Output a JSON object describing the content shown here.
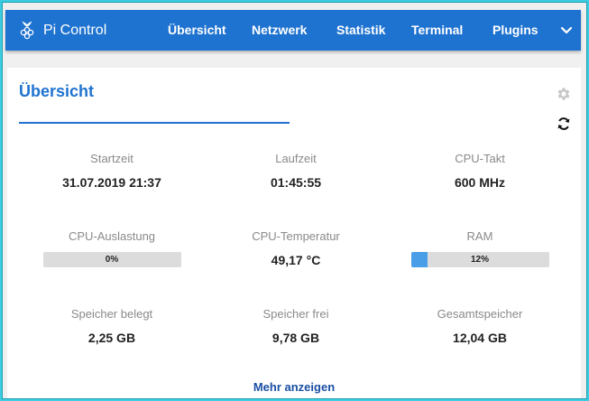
{
  "brand": {
    "title": "Pi Control",
    "icon": "raspberry-icon"
  },
  "nav": {
    "items": [
      {
        "label": "Übersicht"
      },
      {
        "label": "Netzwerk"
      },
      {
        "label": "Statistik"
      },
      {
        "label": "Terminal"
      },
      {
        "label": "Plugins"
      }
    ],
    "chevron_icon": "chevron-down-icon"
  },
  "overview": {
    "title": "Übersicht",
    "settings_icon": "gear-icon",
    "refresh_icon": "refresh-icon",
    "stats": {
      "startzeit": {
        "label": "Startzeit",
        "value": "31.07.2019 21:37"
      },
      "laufzeit": {
        "label": "Laufzeit",
        "value": "01:45:55"
      },
      "cpu_takt": {
        "label": "CPU-Takt",
        "value": "600 MHz"
      },
      "cpu_auslastung": {
        "label": "CPU-Auslastung",
        "text": "0%",
        "percent": 0
      },
      "cpu_temperatur": {
        "label": "CPU-Temperatur",
        "value": "49,17 °C"
      },
      "ram": {
        "label": "RAM",
        "text": "12%",
        "percent": 12
      },
      "speicher_belegt": {
        "label": "Speicher belegt",
        "value": "2,25 GB"
      },
      "speicher_frei": {
        "label": "Speicher frei",
        "value": "9,78 GB"
      },
      "gesamtspeicher": {
        "label": "Gesamtspeicher",
        "value": "12,04 GB"
      }
    },
    "more_label": "Mehr anzeigen"
  },
  "colors": {
    "primary": "#1f73d0",
    "background": "#3ecde0",
    "bar_fill": "#4a9ee8",
    "bar_track": "#dcdcdc"
  }
}
